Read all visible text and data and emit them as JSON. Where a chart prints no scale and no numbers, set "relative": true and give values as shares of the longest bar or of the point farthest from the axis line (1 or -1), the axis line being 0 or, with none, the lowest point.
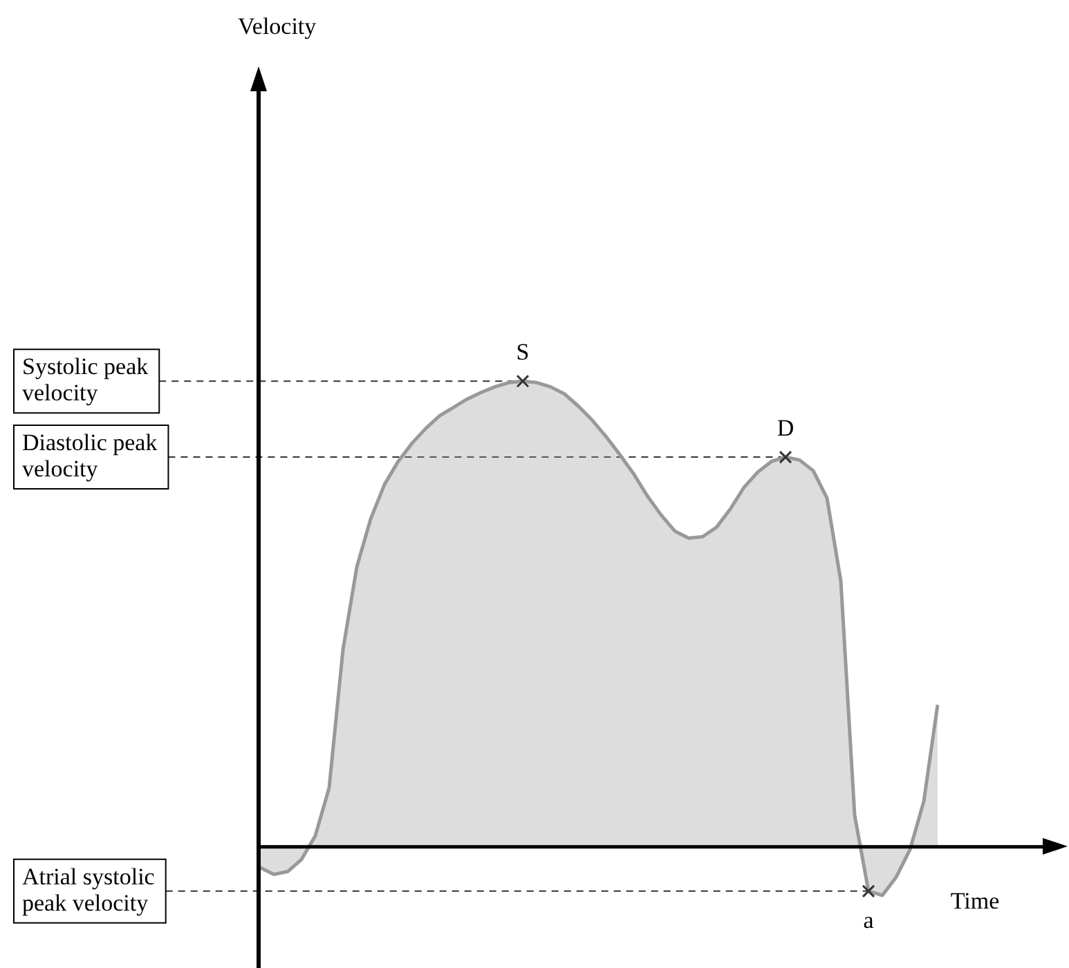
{
  "chart_data": {
    "type": "area",
    "relative": true,
    "xlabel": "Time",
    "grid": false,
    "legend": false,
    "categories": [
      null,
      null,
      null,
      null,
      null,
      null,
      null,
      null,
      null,
      null,
      null,
      null,
      null,
      null,
      null,
      null,
      null,
      null,
      null,
      null,
      null,
      null,
      null,
      null,
      null,
      null,
      null,
      null,
      null,
      null,
      null,
      null,
      null,
      null,
      null,
      null,
      null,
      null,
      null,
      null,
      null,
      null,
      null,
      null,
      null,
      null,
      null,
      null,
      null,
      null
    ],
    "series": [
      {
        "color": "#999999",
        "values": [
          -0.044,
          -0.059,
          -0.053,
          -0.027,
          0.024,
          0.127,
          0.423,
          0.601,
          0.704,
          0.778,
          0.828,
          0.867,
          0.899,
          0.926,
          0.944,
          0.962,
          0.976,
          0.988,
          0.997,
          1,
          0.997,
          0.988,
          0.973,
          0.947,
          0.917,
          0.882,
          0.843,
          0.802,
          0.754,
          0.713,
          0.678,
          0.663,
          0.666,
          0.686,
          0.725,
          0.772,
          0.805,
          0.828,
          0.837,
          0.831,
          0.808,
          0.749,
          0.571,
          0.068,
          -0.095,
          -0.104,
          -0.065,
          -0.006,
          0.098,
          0.305
        ]
      }
    ],
    "ref_lines": [
      {
        "axis": "y",
        "value": 1,
        "label": "Systolic peak velocity",
        "line_style": "dashed",
        "color": "#333333"
      },
      {
        "axis": "y",
        "value": 0.837,
        "label": "Diastolic peak velocity",
        "line_style": "dashed",
        "color": "#333333"
      },
      {
        "axis": "y",
        "value": -0.095,
        "label": "Atrial systolic peak velocity",
        "line_style": "dashed",
        "color": "#333333"
      }
    ],
    "annotations": [
      "Velocity",
      {
        "text": "S",
        "y": 1
      },
      {
        "text": "D",
        "y": 0.837
      },
      {
        "text": "a",
        "y": -0.095
      }
    ]
  }
}
